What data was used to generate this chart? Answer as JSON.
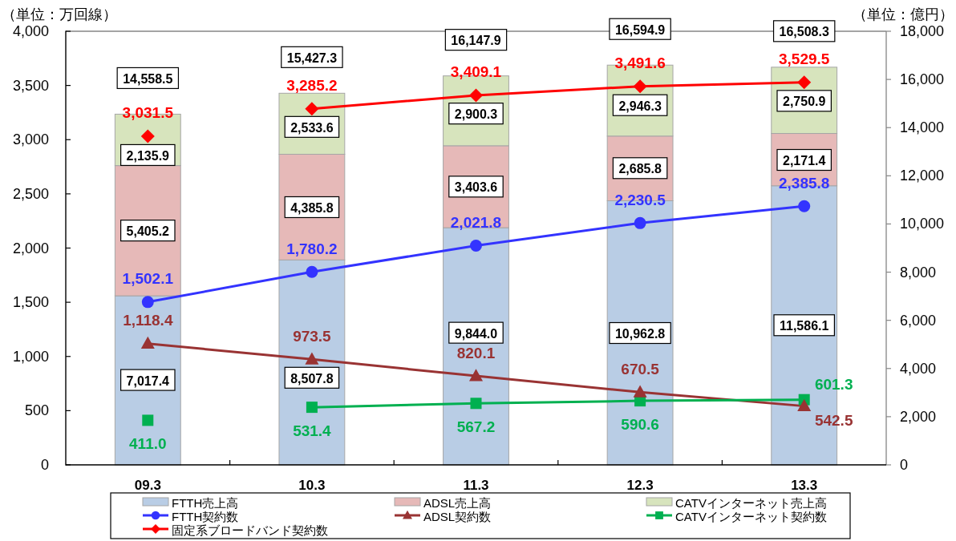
{
  "chart_data": {
    "type": "bar",
    "stacked": true,
    "categories": [
      "09.3",
      "10.3",
      "11.3",
      "12.3",
      "13.3"
    ],
    "ylabel": "（単位：万回線）",
    "y2label": "（単位：億円）",
    "ylim": [
      0,
      4000
    ],
    "yticks": [
      0,
      500,
      {
        "value": 1000,
        "label": "1,000"
      },
      {
        "value": 1500,
        "label": "1,500"
      },
      {
        "value": 2000,
        "label": "2,000"
      },
      {
        "value": 2500,
        "label": "2,500"
      },
      {
        "value": 3000,
        "label": "3,000"
      },
      {
        "value": 3500,
        "label": "3,500"
      },
      {
        "value": 4000,
        "label": "4,000"
      }
    ],
    "y2lim": [
      0,
      18000
    ],
    "y2ticks": [
      0,
      {
        "value": 2000,
        "label": "2,000"
      },
      {
        "value": 4000,
        "label": "4,000"
      },
      {
        "value": 6000,
        "label": "6,000"
      },
      {
        "value": 8000,
        "label": "8,000"
      },
      {
        "value": 10000,
        "label": "10,000"
      },
      {
        "value": 12000,
        "label": "12,000"
      },
      {
        "value": 14000,
        "label": "14,000"
      },
      {
        "value": 16000,
        "label": "16,000"
      },
      {
        "value": 18000,
        "label": "18,000"
      }
    ],
    "series": [
      {
        "name": "FTTH売上高",
        "type": "bar",
        "axis": "y2",
        "color": "#b9cde5",
        "values": [
          7017.4,
          8507.8,
          9844.0,
          10962.8,
          11586.1
        ],
        "value_labels": [
          "7,017.4",
          "8,507.8",
          "9,844.0",
          "10,962.8",
          "11,586.1"
        ]
      },
      {
        "name": "ADSL売上高",
        "type": "bar",
        "axis": "y2",
        "color": "#e6b9b8",
        "values": [
          5405.2,
          4385.8,
          3403.6,
          2685.8,
          2171.4
        ],
        "value_labels": [
          "5,405.2",
          "4,385.8",
          "3,403.6",
          "2,685.8",
          "2,171.4"
        ]
      },
      {
        "name": "CATVインターネット売上高",
        "type": "bar",
        "axis": "y2",
        "color": "#d7e4bd",
        "values": [
          2135.9,
          2533.6,
          2900.3,
          2946.3,
          2750.9
        ],
        "value_labels": [
          "2,135.9",
          "2,533.6",
          "2,900.3",
          "2,946.3",
          "2,750.9"
        ]
      },
      {
        "name": "FTTH契約数",
        "type": "line",
        "color": "#3333ff",
        "marker": "circle",
        "values": [
          1502.1,
          1780.2,
          2021.8,
          2230.5,
          2385.8
        ],
        "value_labels": [
          "1,502.1",
          "1,780.2",
          "2,021.8",
          "2,230.5",
          "2,385.8"
        ]
      },
      {
        "name": "ADSL契約数",
        "type": "line",
        "color": "#993333",
        "marker": "triangle",
        "values": [
          1118.4,
          973.5,
          820.1,
          670.5,
          542.5
        ],
        "value_labels": [
          "1,118.4",
          "973.5",
          "820.1",
          "670.5",
          "542.5"
        ]
      },
      {
        "name": "CATVインターネット契約数",
        "type": "line",
        "color": "#00b050",
        "marker": "square",
        "values": [
          null,
          531.4,
          567.2,
          590.6,
          601.3
        ],
        "value_labels": [
          null,
          "531.4",
          "567.2",
          "590.6",
          "601.3"
        ]
      },
      {
        "type": "scatter",
        "color": "#00b050",
        "marker": "square",
        "values": [
          411.0,
          null,
          null,
          null,
          null
        ],
        "value_labels": [
          "411.0",
          null,
          null,
          null,
          null
        ]
      },
      {
        "name": "固定系ブロードバンド契約数",
        "type": "line",
        "color": "#ff0000",
        "marker": "diamond",
        "values": [
          null,
          3285.2,
          3409.1,
          3491.6,
          3529.5
        ],
        "value_labels": [
          null,
          "3,285.2",
          "3,409.1",
          "3,491.6",
          "3,529.5"
        ]
      },
      {
        "type": "scatter",
        "color": "#ff0000",
        "marker": "diamond",
        "values": [
          3031.5,
          null,
          null,
          null,
          null
        ],
        "value_labels": [
          "3,031.5",
          null,
          null,
          null,
          null
        ]
      }
    ],
    "totals": [
      "14,558.5",
      "15,427.3",
      "16,147.9",
      "16,594.9",
      "16,508.3"
    ],
    "legend": "bottom"
  }
}
